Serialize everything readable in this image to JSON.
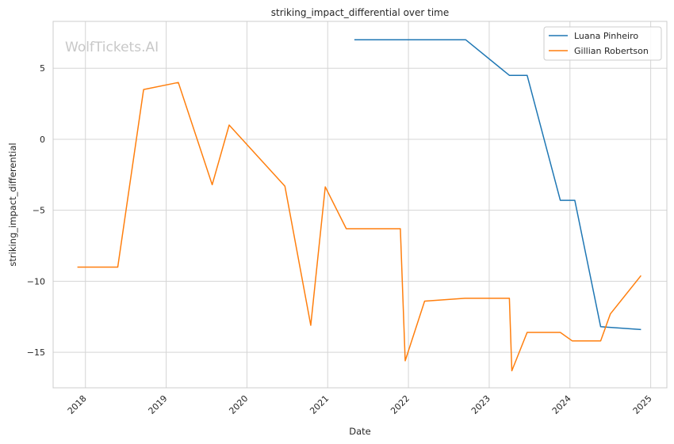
{
  "chart_data": {
    "type": "line",
    "title": "striking_impact_differential over time",
    "xlabel": "Date",
    "ylabel": "striking_impact_differential",
    "watermark": "WolfTickets.AI",
    "legend_position": "top-right",
    "grid": true,
    "xlim": [
      2017.6,
      2025.2
    ],
    "ylim": [
      -17.5,
      8.3
    ],
    "x_ticks": [
      {
        "value": 2018,
        "label": "2018"
      },
      {
        "value": 2019,
        "label": "2019"
      },
      {
        "value": 2020,
        "label": "2020"
      },
      {
        "value": 2021,
        "label": "2021"
      },
      {
        "value": 2022,
        "label": "2022"
      },
      {
        "value": 2023,
        "label": "2023"
      },
      {
        "value": 2024,
        "label": "2024"
      },
      {
        "value": 2025,
        "label": "2025"
      }
    ],
    "y_ticks": [
      {
        "value": 5,
        "label": "5"
      },
      {
        "value": 0,
        "label": "0"
      },
      {
        "value": -5,
        "label": "−5"
      },
      {
        "value": -10,
        "label": "−10"
      },
      {
        "value": -15,
        "label": "−15"
      }
    ],
    "series": [
      {
        "name": "Luana Pinheiro",
        "color": "#1f77b4",
        "points": [
          [
            2021.33,
            7.0
          ],
          [
            2022.71,
            7.0
          ],
          [
            2023.25,
            4.5
          ],
          [
            2023.47,
            4.5
          ],
          [
            2023.88,
            -4.3
          ],
          [
            2024.06,
            -4.3
          ],
          [
            2024.38,
            -13.2
          ],
          [
            2024.88,
            -13.4
          ]
        ]
      },
      {
        "name": "Gillian Robertson",
        "color": "#ff7f0e",
        "points": [
          [
            2017.9,
            -9.0
          ],
          [
            2018.4,
            -9.0
          ],
          [
            2018.72,
            3.5
          ],
          [
            2019.15,
            4.0
          ],
          [
            2019.57,
            -3.2
          ],
          [
            2019.78,
            1.0
          ],
          [
            2020.47,
            -3.3
          ],
          [
            2020.79,
            -13.1
          ],
          [
            2020.97,
            -3.35
          ],
          [
            2021.23,
            -6.3
          ],
          [
            2021.9,
            -6.3
          ],
          [
            2021.96,
            -15.6
          ],
          [
            2022.2,
            -11.4
          ],
          [
            2022.7,
            -11.2
          ],
          [
            2023.25,
            -11.2
          ],
          [
            2023.28,
            -16.3
          ],
          [
            2023.47,
            -13.6
          ],
          [
            2023.88,
            -13.6
          ],
          [
            2024.03,
            -14.2
          ],
          [
            2024.38,
            -14.2
          ],
          [
            2024.5,
            -12.3
          ],
          [
            2024.88,
            -9.6
          ]
        ]
      }
    ]
  }
}
